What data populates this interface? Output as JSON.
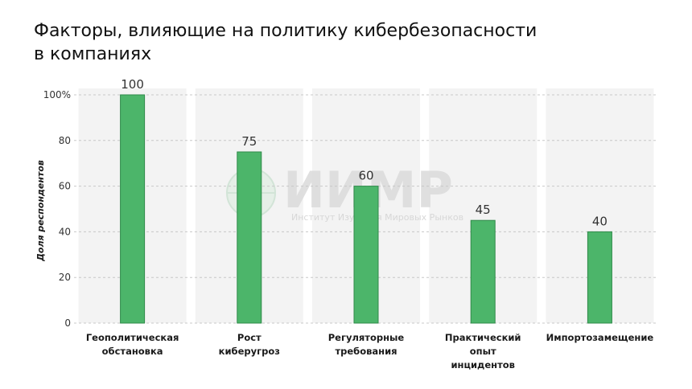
{
  "title_lines": [
    "Факторы, влияющие на политику кибербезопасности",
    "в компаниях"
  ],
  "colors": {
    "bar": "#4cb56a",
    "bar_stroke": "#2f8a49",
    "band": "#f3f3f3",
    "grid": "#c8c8c8"
  },
  "watermark": {
    "name": "ИИМР",
    "subtitle": "Институт Изучения Мировых Рынков"
  },
  "chart_data": {
    "type": "bar",
    "title": "Факторы, влияющие на политику кибербезопасности в компаниях",
    "xlabel": "",
    "ylabel": "Доля респондентов",
    "ylim": [
      0,
      100
    ],
    "yticks": [
      0,
      20,
      40,
      60,
      80,
      100
    ],
    "ytick_labels": [
      "0",
      "20",
      "40",
      "60",
      "80",
      "100%"
    ],
    "categories": [
      [
        "Геополитическая",
        "обстановка"
      ],
      [
        "Рост",
        "киберугроз"
      ],
      [
        "Регуляторные",
        "требования"
      ],
      [
        "Практический",
        "опыт",
        "инцидентов"
      ],
      [
        "Импортозамещение"
      ]
    ],
    "values": [
      100,
      75,
      60,
      45,
      40
    ],
    "value_labels": [
      "100",
      "75",
      "60",
      "45",
      "40"
    ],
    "grid": true,
    "legend": "none"
  }
}
